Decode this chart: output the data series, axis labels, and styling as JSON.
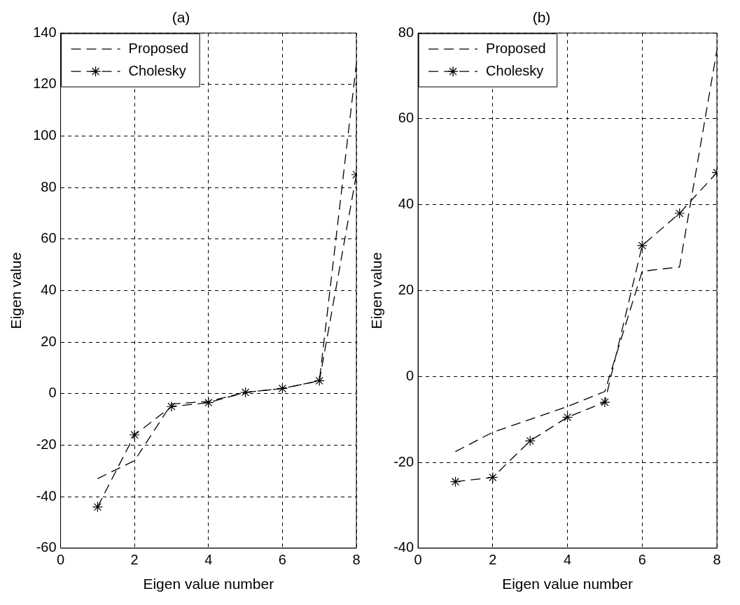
{
  "chart_data": [
    {
      "type": "line",
      "title": "(a)",
      "xlabel": "Eigen value number",
      "ylabel": "Eigen value",
      "x": [
        1,
        2,
        3,
        4,
        5,
        6,
        7,
        8
      ],
      "series": [
        {
          "name": "Proposed",
          "color": "#000000",
          "values": [
            -33,
            -26,
            -4,
            -3,
            0.5,
            2,
            5,
            128
          ],
          "marker": "none",
          "line_style": "dashed"
        },
        {
          "name": "Cholesky",
          "color": "#000000",
          "values": [
            -44,
            -16,
            -5,
            -3.5,
            0.5,
            2,
            5,
            85
          ],
          "marker": "cross",
          "line_style": "dashed"
        }
      ],
      "xlim": [
        0,
        8
      ],
      "xticks": [
        0,
        2,
        4,
        6,
        8
      ],
      "ylim": [
        -60,
        140
      ],
      "yticks": [
        -60,
        -40,
        -20,
        0,
        20,
        40,
        60,
        80,
        100,
        120,
        140
      ],
      "grid": true,
      "legend": "top left"
    },
    {
      "type": "line",
      "title": "(b)",
      "xlabel": "Eigen value number",
      "ylabel": "Eigen value",
      "x": [
        1,
        2,
        3,
        4,
        5,
        6,
        7,
        8
      ],
      "series": [
        {
          "name": "Proposed",
          "color": "#000000",
          "values": [
            -17.5,
            -13,
            -10,
            -7,
            -3.5,
            24.5,
            25.5,
            76
          ],
          "marker": "none",
          "line_style": "dashed"
        },
        {
          "name": "Cholesky",
          "color": "#000000",
          "values": [
            -24.5,
            -23.5,
            -15,
            -9.5,
            -6,
            30.5,
            38,
            47.5
          ],
          "marker": "cross",
          "line_style": "dashed"
        }
      ],
      "xlim": [
        0,
        8
      ],
      "xticks": [
        0,
        2,
        4,
        6,
        8
      ],
      "ylim": [
        -40,
        80
      ],
      "yticks": [
        -40,
        -20,
        0,
        20,
        40,
        60,
        80
      ],
      "grid": true,
      "legend": "top left"
    }
  ]
}
